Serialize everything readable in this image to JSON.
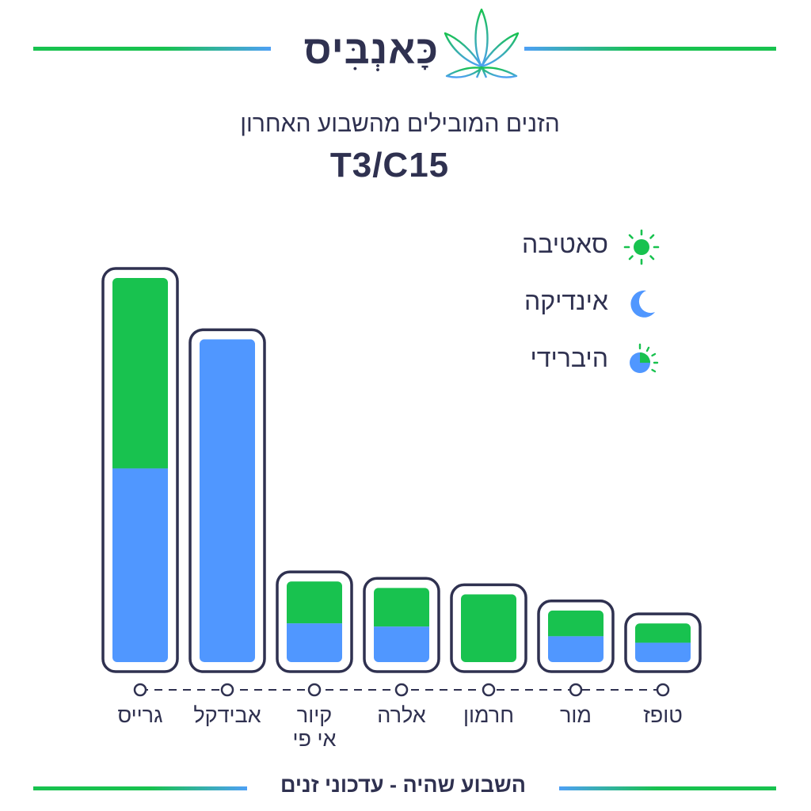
{
  "header": {
    "brand_name": "כָּאנְבִּיס",
    "subtitle": "הזנים המובילים מהשבוע האחרון",
    "code": "T3/C15"
  },
  "legend": [
    {
      "label": "סאטיבה",
      "icon": "sun-icon"
    },
    {
      "label": "אינדיקה",
      "icon": "moon-icon"
    },
    {
      "label": "היברידי",
      "icon": "half-sun-moon-icon"
    }
  ],
  "footer": {
    "text": "השבוע שהיה - עדכוני זנים"
  },
  "colors": {
    "sativa": "#18c24f",
    "indica": "#5097ff",
    "outline": "#2f3150"
  },
  "chart_data": {
    "type": "bar",
    "stacked": true,
    "categories": [
      "גרייס",
      "אבידקל",
      "קיור אי פי",
      "אלרה",
      "חרמון",
      "מור",
      "טופז"
    ],
    "category_lines": [
      [
        "גרייס"
      ],
      [
        "אבידקל"
      ],
      [
        "קיור",
        "אי פי"
      ],
      [
        "אלרה"
      ],
      [
        "חרמון"
      ],
      [
        "מור"
      ],
      [
        "טופז"
      ]
    ],
    "series": [
      {
        "name": "אינדיקה",
        "values": [
          60,
          100,
          12,
          11,
          0,
          8,
          6
        ]
      },
      {
        "name": "סאטיבה",
        "values": [
          59,
          0,
          13,
          12,
          21,
          8,
          6
        ]
      }
    ],
    "ylim": [
      0,
      119
    ],
    "grid": false,
    "legend_position": "top-right"
  }
}
